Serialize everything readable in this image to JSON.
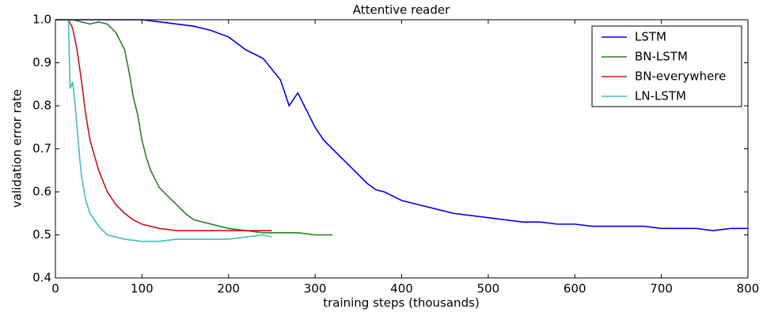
{
  "chart_data": {
    "type": "line",
    "title": "Attentive reader",
    "x_label": "training steps (thousands)",
    "y_label": "validation error rate",
    "xlim": [
      0,
      800
    ],
    "ylim": [
      0.4,
      1
    ],
    "xticks": [
      0,
      100,
      200,
      300,
      400,
      500,
      600,
      700,
      800
    ],
    "yticks": [
      0.4,
      0.5,
      0.6,
      0.7,
      0.8,
      0.9,
      {
        "value": 1,
        "label": "1.0"
      }
    ],
    "legend": "upper right",
    "series": [
      {
        "name": "LSTM",
        "color": "#0000ee",
        "x": [
          0,
          20,
          40,
          60,
          80,
          100,
          120,
          140,
          160,
          180,
          200,
          220,
          240,
          260,
          270,
          280,
          290,
          300,
          310,
          320,
          330,
          340,
          350,
          360,
          370,
          380,
          390,
          400,
          420,
          440,
          460,
          480,
          500,
          520,
          540,
          560,
          580,
          600,
          620,
          640,
          660,
          680,
          700,
          720,
          740,
          760,
          780,
          800
        ],
        "values": [
          1.0,
          1.0,
          1.0,
          1.0,
          1.0,
          1.0,
          0.995,
          0.99,
          0.985,
          0.975,
          0.96,
          0.93,
          0.91,
          0.86,
          0.8,
          0.83,
          0.79,
          0.75,
          0.72,
          0.7,
          0.68,
          0.66,
          0.64,
          0.62,
          0.605,
          0.6,
          0.59,
          0.58,
          0.57,
          0.56,
          0.55,
          0.545,
          0.54,
          0.535,
          0.53,
          0.53,
          0.525,
          0.525,
          0.52,
          0.52,
          0.52,
          0.52,
          0.515,
          0.515,
          0.515,
          0.51,
          0.515,
          0.515
        ]
      },
      {
        "name": "BN-LSTM",
        "color": "#2a7f1e",
        "x": [
          0,
          20,
          40,
          50,
          60,
          70,
          80,
          85,
          90,
          95,
          100,
          105,
          110,
          120,
          130,
          140,
          150,
          160,
          180,
          200,
          220,
          240,
          260,
          280,
          300,
          320
        ],
        "values": [
          1.0,
          1.0,
          0.99,
          0.995,
          0.99,
          0.97,
          0.93,
          0.88,
          0.82,
          0.78,
          0.72,
          0.68,
          0.65,
          0.61,
          0.59,
          0.57,
          0.55,
          0.535,
          0.525,
          0.515,
          0.51,
          0.505,
          0.505,
          0.505,
          0.5,
          0.5
        ]
      },
      {
        "name": "BN-everywhere",
        "color": "#cc1111",
        "x": [
          0,
          15,
          20,
          25,
          30,
          35,
          40,
          50,
          60,
          70,
          80,
          90,
          100,
          120,
          140,
          160,
          180,
          200,
          220,
          250
        ],
        "values": [
          1.0,
          1.0,
          0.98,
          0.93,
          0.86,
          0.78,
          0.72,
          0.65,
          0.6,
          0.57,
          0.55,
          0.535,
          0.525,
          0.515,
          0.51,
          0.51,
          0.51,
          0.51,
          0.51,
          0.51
        ]
      },
      {
        "name": "LN-LSTM",
        "color": "#44bbbb",
        "x": [
          0,
          15,
          17,
          20,
          23,
          25,
          28,
          30,
          35,
          40,
          50,
          60,
          80,
          100,
          120,
          140,
          160,
          180,
          200,
          220,
          240,
          250
        ],
        "values": [
          1.0,
          1.0,
          0.84,
          0.855,
          0.8,
          0.75,
          0.68,
          0.64,
          0.58,
          0.55,
          0.52,
          0.5,
          0.49,
          0.485,
          0.485,
          0.49,
          0.49,
          0.49,
          0.49,
          0.495,
          0.5,
          0.495
        ]
      }
    ]
  }
}
